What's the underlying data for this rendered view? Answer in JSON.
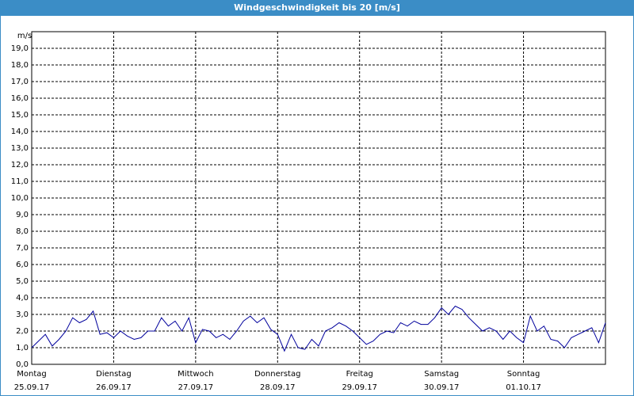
{
  "chart_data": {
    "type": "line",
    "title": "Windgeschwindigkeit bis 20 [m/s]",
    "y_unit": "m/s",
    "x": [
      0,
      2,
      4,
      6,
      8,
      10,
      12,
      14,
      16,
      18,
      20,
      22,
      24,
      26,
      28,
      30,
      32,
      34,
      36,
      38,
      40,
      42,
      44,
      46,
      48,
      50,
      52,
      54,
      56,
      58,
      60,
      62,
      64,
      66,
      68,
      70,
      72,
      74,
      76,
      78,
      80,
      82,
      84,
      86,
      88,
      90,
      92,
      94,
      96,
      98,
      100,
      102,
      104,
      106,
      108,
      110,
      112,
      114,
      116,
      118,
      120,
      122,
      124,
      126,
      128,
      130,
      132,
      134,
      136,
      138,
      140,
      142,
      144,
      146,
      148,
      150,
      152,
      154,
      156,
      158,
      160,
      162,
      164,
      166,
      168
    ],
    "series": [
      {
        "name": "Windgeschwindigkeit",
        "color": "#00009c",
        "values": [
          1.0,
          1.4,
          1.8,
          1.1,
          1.5,
          2.0,
          2.8,
          2.5,
          2.7,
          3.2,
          1.8,
          1.9,
          1.6,
          2.0,
          1.7,
          1.5,
          1.6,
          2.0,
          2.0,
          2.8,
          2.3,
          2.6,
          2.0,
          2.8,
          1.3,
          2.1,
          2.0,
          1.6,
          1.8,
          1.5,
          2.0,
          2.6,
          2.9,
          2.5,
          2.8,
          2.1,
          1.8,
          0.8,
          1.8,
          1.0,
          0.9,
          1.5,
          1.1,
          2.0,
          2.2,
          2.5,
          2.3,
          2.0,
          1.6,
          1.2,
          1.4,
          1.8,
          2.0,
          1.9,
          2.5,
          2.3,
          2.6,
          2.4,
          2.4,
          2.8,
          3.4,
          3.0,
          3.5,
          3.3,
          2.8,
          2.4,
          2.0,
          2.2,
          2.0,
          1.5,
          2.0,
          1.6,
          1.3,
          2.9,
          2.0,
          2.3,
          1.5,
          1.4,
          1.0,
          1.6,
          1.8,
          2.0,
          2.2,
          1.3,
          2.5
        ]
      }
    ],
    "xlim": [
      0,
      168
    ],
    "xticks": [
      {
        "value": 0,
        "label": "Montag",
        "date": "25.09.17"
      },
      {
        "value": 24,
        "label": "Dienstag",
        "date": "26.09.17"
      },
      {
        "value": 48,
        "label": "Mittwoch",
        "date": "27.09.17"
      },
      {
        "value": 72,
        "label": "Donnerstag",
        "date": "28.09.17"
      },
      {
        "value": 96,
        "label": "Freitag",
        "date": "29.09.17"
      },
      {
        "value": 120,
        "label": "Samstag",
        "date": "30.09.17"
      },
      {
        "value": 144,
        "label": "Sonntag",
        "date": "01.10.17"
      }
    ],
    "ylim": [
      0,
      20
    ],
    "yticks": [
      {
        "value": 0,
        "label": "0,0"
      },
      {
        "value": 1,
        "label": "1,0"
      },
      {
        "value": 2,
        "label": "2,0"
      },
      {
        "value": 3,
        "label": "3,0"
      },
      {
        "value": 4,
        "label": "4,0"
      },
      {
        "value": 5,
        "label": "5,0"
      },
      {
        "value": 6,
        "label": "6,0"
      },
      {
        "value": 7,
        "label": "7,0"
      },
      {
        "value": 8,
        "label": "8,0"
      },
      {
        "value": 9,
        "label": "9,0"
      },
      {
        "value": 10,
        "label": "10,0"
      },
      {
        "value": 11,
        "label": "11,0"
      },
      {
        "value": 12,
        "label": "12,0"
      },
      {
        "value": 13,
        "label": "13,0"
      },
      {
        "value": 14,
        "label": "14,0"
      },
      {
        "value": 15,
        "label": "15,0"
      },
      {
        "value": 16,
        "label": "16,0"
      },
      {
        "value": 17,
        "label": "17,0"
      },
      {
        "value": 18,
        "label": "18,0"
      },
      {
        "value": 19,
        "label": "19,0"
      }
    ],
    "grid": true
  }
}
